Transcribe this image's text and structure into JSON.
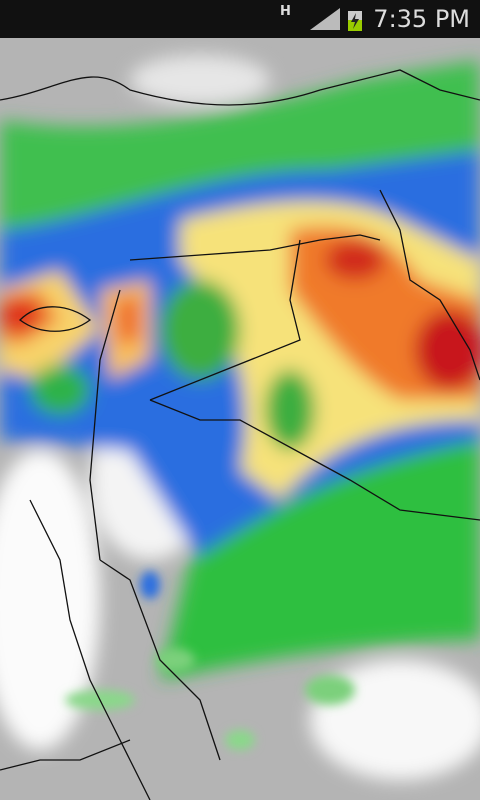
{
  "status_bar": {
    "network": "H",
    "time": "7:35 PM"
  }
}
